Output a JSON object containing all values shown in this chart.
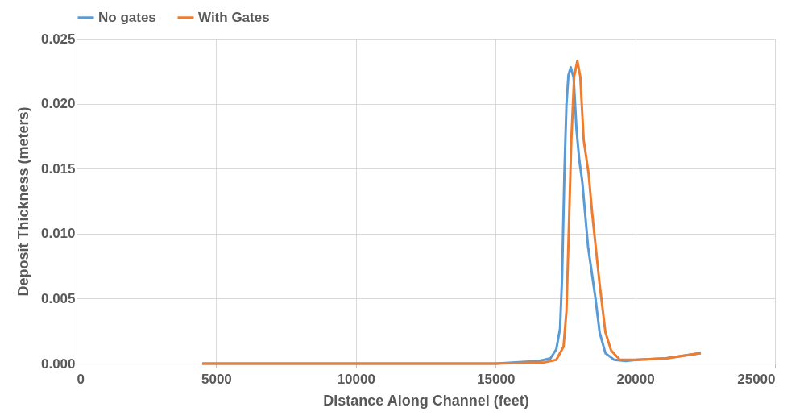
{
  "chart_data": {
    "type": "line",
    "xlabel": "Distance Along Channel (feet)",
    "ylabel": "Deposit Thickness (meters)",
    "xlim": [
      0,
      25000
    ],
    "xticks": [
      0,
      5000,
      10000,
      15000,
      20000,
      25000
    ],
    "ylim": [
      0,
      0.025
    ],
    "yticks": [
      {
        "value": 0,
        "label": "0.000"
      },
      {
        "value": 0.005,
        "label": "0.005"
      },
      {
        "value": 0.01,
        "label": "0.010"
      },
      {
        "value": 0.015,
        "label": "0.015"
      },
      {
        "value": 0.02,
        "label": "0.020"
      },
      {
        "value": 0.025,
        "label": "0.025"
      }
    ],
    "grid": true,
    "legend": "top",
    "marker": "none",
    "line_style": "solid",
    "series": [
      {
        "name": "No gates",
        "color": "#5b9bd5",
        "x": [
          4500,
          15000,
          16553,
          16966,
          17173,
          17307,
          17380,
          17463,
          17536,
          17608,
          17690,
          17794,
          17897,
          18000,
          18104,
          18310,
          18570,
          18725,
          18932,
          19240,
          19656,
          20068,
          21101,
          22341
        ],
        "values": [
          0,
          0,
          0.0002,
          0.0004,
          0.0011,
          0.0027,
          0.0066,
          0.0146,
          0.0199,
          0.0222,
          0.0228,
          0.022,
          0.018,
          0.0156,
          0.014,
          0.009,
          0.0051,
          0.0024,
          0.0008,
          0.0003,
          0.0002,
          0.0003,
          0.0004,
          0.0008
        ]
      },
      {
        "name": "With Gates",
        "color": "#ed7d31",
        "x": [
          4500,
          15000,
          16760,
          17173,
          17432,
          17536,
          17608,
          17711,
          17814,
          17928,
          18031,
          18155,
          18331,
          18465,
          18725,
          18932,
          19138,
          19448,
          20068,
          21101,
          22341
        ],
        "values": [
          0,
          0,
          0.0001,
          0.0003,
          0.0013,
          0.004,
          0.0093,
          0.0172,
          0.0221,
          0.0233,
          0.0221,
          0.0172,
          0.0146,
          0.0114,
          0.0061,
          0.0024,
          0.001,
          0.0003,
          0.0003,
          0.0004,
          0.0008
        ]
      }
    ]
  }
}
